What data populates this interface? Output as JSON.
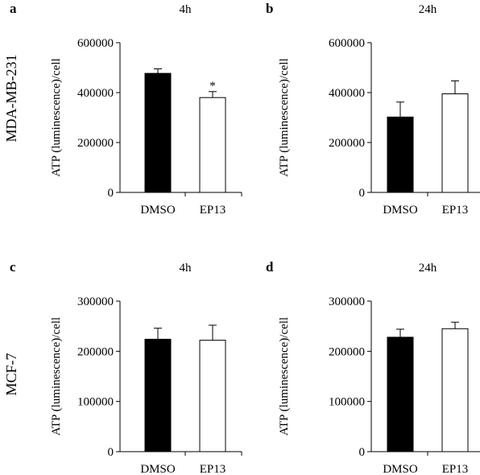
{
  "row_labels": [
    "MDA-MB-231",
    "MCF-7"
  ],
  "chart_data": [
    {
      "type": "bar",
      "panel": "a",
      "title": "4h",
      "ylabel": "ATP (luminescence)/cell",
      "categories": [
        "DMSO",
        "EP13"
      ],
      "values": [
        477000,
        380000
      ],
      "errors": [
        18000,
        24000
      ],
      "annotations": [
        "",
        "*"
      ],
      "ylim": [
        0,
        600000
      ],
      "yticks": [
        "0",
        "200000",
        "400000",
        "600000"
      ],
      "bar_fill": [
        "#000000",
        "#ffffff"
      ]
    },
    {
      "type": "bar",
      "panel": "b",
      "title": "24h",
      "ylabel": "ATP (luminescence)/cell",
      "categories": [
        "DMSO",
        "EP13"
      ],
      "values": [
        302000,
        395000
      ],
      "errors": [
        60000,
        52000
      ],
      "annotations": [
        "",
        ""
      ],
      "ylim": [
        0,
        600000
      ],
      "yticks": [
        "0",
        "200000",
        "400000",
        "600000"
      ],
      "bar_fill": [
        "#000000",
        "#ffffff"
      ]
    },
    {
      "type": "bar",
      "panel": "c",
      "title": "4h",
      "ylabel": "ATP (luminescence)/cell",
      "categories": [
        "DMSO",
        "EP13"
      ],
      "values": [
        224000,
        222000
      ],
      "errors": [
        22000,
        30000
      ],
      "annotations": [
        "",
        ""
      ],
      "ylim": [
        0,
        300000
      ],
      "yticks": [
        "0",
        "100000",
        "200000",
        "300000"
      ],
      "bar_fill": [
        "#000000",
        "#ffffff"
      ]
    },
    {
      "type": "bar",
      "panel": "d",
      "title": "24h",
      "ylabel": "ATP (luminescence)/cell",
      "categories": [
        "DMSO",
        "EP13"
      ],
      "values": [
        228000,
        245000
      ],
      "errors": [
        16000,
        13000
      ],
      "annotations": [
        "",
        ""
      ],
      "ylim": [
        0,
        300000
      ],
      "yticks": [
        "0",
        "100000",
        "200000",
        "300000"
      ],
      "bar_fill": [
        "#000000",
        "#ffffff"
      ]
    }
  ]
}
